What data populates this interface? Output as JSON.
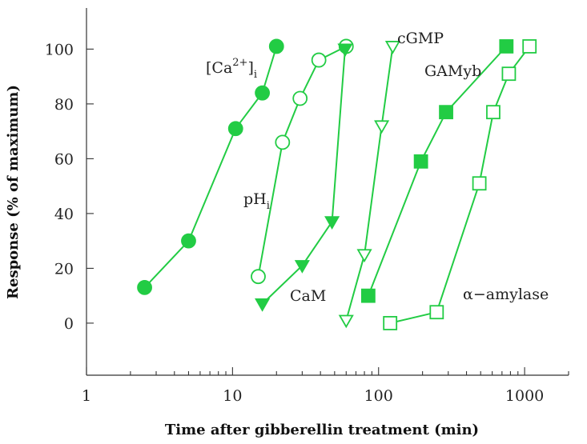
{
  "chart_data": {
    "type": "line",
    "xscale": "log",
    "xlim": [
      1,
      2000
    ],
    "ylim": [
      -19,
      115
    ],
    "xticks": [
      1,
      10,
      100,
      1000
    ],
    "xtick_labels": [
      "1",
      "10",
      "100",
      "1000"
    ],
    "yticks": [
      0,
      20,
      40,
      60,
      80,
      100
    ],
    "ytick_labels": [
      "0",
      "20",
      "40",
      "60",
      "80",
      "100"
    ],
    "xlabel": "Time after gibberellin treatment (min)",
    "ylabel": "Response (% of maximum)",
    "grid": false,
    "series": [
      {
        "name": "[Ca2+]i",
        "marker": "circle-filled",
        "color": "#22cc44",
        "x": [
          2.5,
          5,
          10.5,
          16,
          20
        ],
        "y": [
          13,
          30,
          71,
          84,
          101
        ]
      },
      {
        "name": "pHi",
        "marker": "circle-open",
        "color": "#22cc44",
        "x": [
          15,
          22,
          29,
          39,
          60
        ],
        "y": [
          17,
          66,
          82,
          96,
          101
        ]
      },
      {
        "name": "CaM",
        "marker": "triangle-down-filled",
        "color": "#22cc44",
        "x": [
          16,
          30,
          48,
          59
        ],
        "y": [
          7,
          21,
          37,
          100
        ]
      },
      {
        "name": "cGMP",
        "marker": "triangle-down-open",
        "color": "#22cc44",
        "x": [
          60,
          80,
          105,
          125
        ],
        "y": [
          1,
          25,
          72,
          101
        ]
      },
      {
        "name": "GAMyb",
        "marker": "square-filled",
        "color": "#22cc44",
        "x": [
          85,
          195,
          290,
          750
        ],
        "y": [
          10,
          59,
          77,
          101
        ]
      },
      {
        "name": "α−amylase",
        "marker": "square-open",
        "color": "#22cc44",
        "x": [
          120,
          250,
          490,
          610,
          780,
          1080
        ],
        "y": [
          0,
          4,
          51,
          77,
          91,
          101
        ]
      }
    ]
  }
}
